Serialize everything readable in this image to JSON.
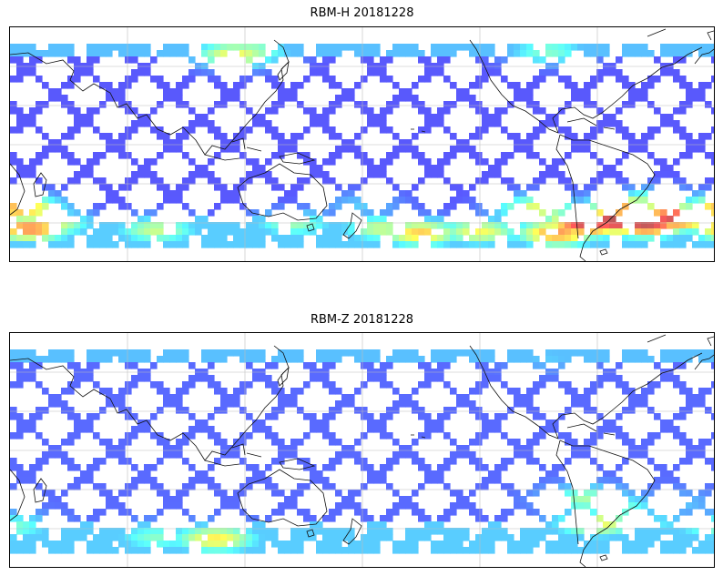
{
  "panels": [
    {
      "title": "RBM-H 20181228",
      "hotspots": [
        {
          "lon": 135,
          "lat": 58,
          "val": 0.62
        },
        {
          "lon": 142,
          "lat": 60,
          "val": 0.52
        },
        {
          "lon": -65,
          "lat": 60,
          "val": 0.45
        },
        {
          "lon": -150,
          "lat": -55,
          "val": 0.55
        },
        {
          "lon": -130,
          "lat": -58,
          "val": 0.7
        },
        {
          "lon": -100,
          "lat": -57,
          "val": 0.62
        },
        {
          "lon": -60,
          "lat": -58,
          "val": 0.78
        },
        {
          "lon": -45,
          "lat": -52,
          "val": 0.95
        },
        {
          "lon": -30,
          "lat": -50,
          "val": 1.0
        },
        {
          "lon": -15,
          "lat": -52,
          "val": 0.97
        },
        {
          "lon": 0,
          "lat": -48,
          "val": 0.95
        },
        {
          "lon": -25,
          "lat": -42,
          "val": 0.75
        },
        {
          "lon": -70,
          "lat": -42,
          "val": 0.6
        },
        {
          "lon": -10,
          "lat": -38,
          "val": 0.55
        },
        {
          "lon": 25,
          "lat": -42,
          "val": 0.75
        },
        {
          "lon": 30,
          "lat": -55,
          "val": 0.8
        },
        {
          "lon": 40,
          "lat": -52,
          "val": 0.6
        },
        {
          "lon": 95,
          "lat": -56,
          "val": 0.55
        },
        {
          "lon": 165,
          "lat": -52,
          "val": 0.48
        },
        {
          "lon": -160,
          "lat": -40,
          "val": 0.3
        }
      ],
      "base_level": 0.12
    },
    {
      "title": "RBM-Z 20181228",
      "hotspots": [
        {
          "lon": -45,
          "lat": -32,
          "val": 0.5
        },
        {
          "lon": -40,
          "lat": -48,
          "val": 0.62
        },
        {
          "lon": -30,
          "lat": -38,
          "val": 0.45
        },
        {
          "lon": 125,
          "lat": -58,
          "val": 0.65
        },
        {
          "lon": 95,
          "lat": -57,
          "val": 0.45
        },
        {
          "lon": 20,
          "lat": -50,
          "val": 0.45
        },
        {
          "lon": -10,
          "lat": -48,
          "val": 0.35
        },
        {
          "lon": -65,
          "lat": 60,
          "val": 0.3
        },
        {
          "lon": 0,
          "lat": -35,
          "val": 0.3
        }
      ],
      "base_level": 0.15
    }
  ],
  "colormap": "jet"
}
